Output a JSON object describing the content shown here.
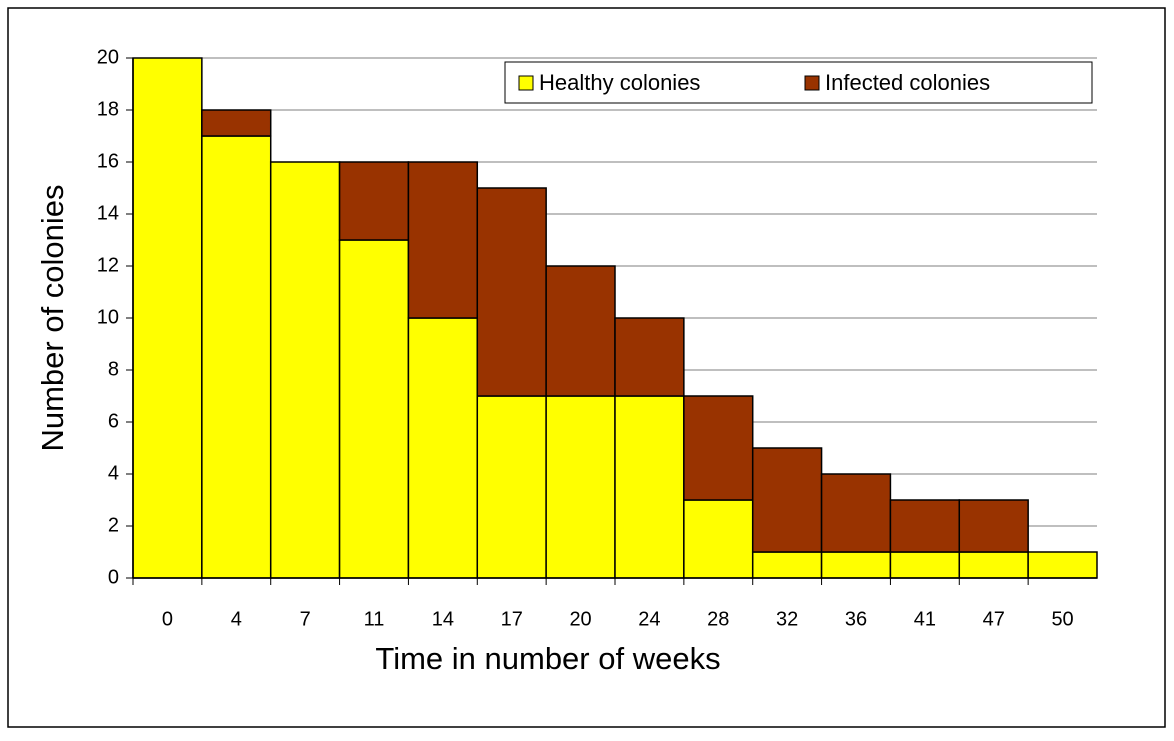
{
  "chart_data": {
    "type": "stacked-bar",
    "x_label": "Time in number of weeks",
    "y_label": "Number of colonies",
    "categories": [
      "0",
      "4",
      "7",
      "11",
      "14",
      "17",
      "20",
      "24",
      "28",
      "32",
      "36",
      "41",
      "47",
      "50"
    ],
    "series": [
      {
        "name": "Healthy colonies",
        "color": "#ffff00",
        "values": [
          20,
          17,
          16,
          13,
          10,
          7,
          7,
          7,
          3,
          1,
          1,
          1,
          1,
          1
        ]
      },
      {
        "name": "Infected colonies",
        "color": "#993300",
        "values": [
          0,
          1,
          0,
          3,
          6,
          8,
          5,
          3,
          4,
          4,
          3,
          2,
          2,
          0
        ]
      }
    ],
    "ylim": [
      0,
      20
    ],
    "yticks": [
      0,
      2,
      4,
      6,
      8,
      10,
      12,
      14,
      16,
      18,
      20
    ],
    "grid": true,
    "legend": "top-right"
  }
}
